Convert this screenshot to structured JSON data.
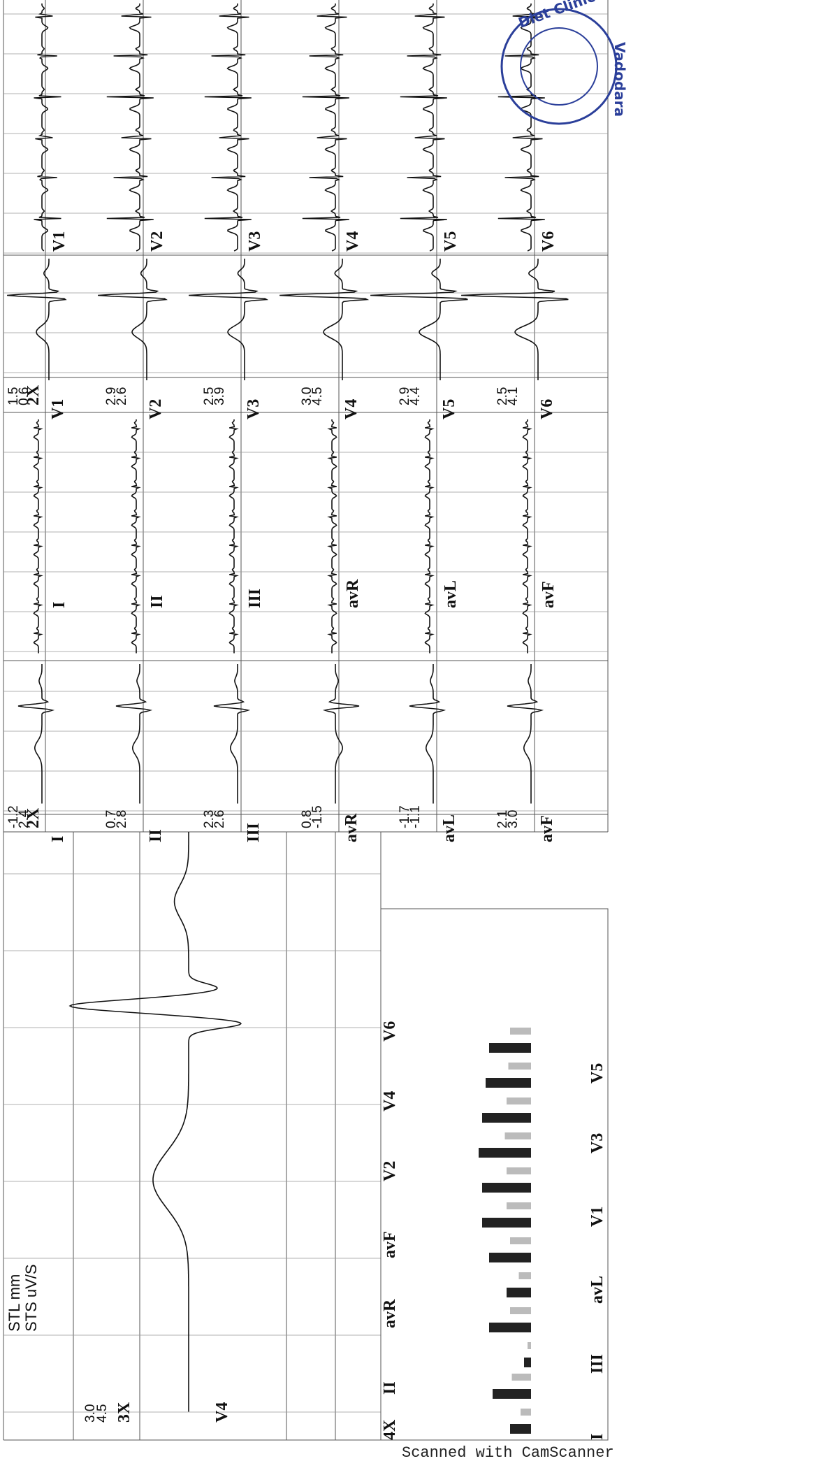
{
  "header": {
    "stl": "STL mm",
    "sts": "STS uV/S"
  },
  "magnified": {
    "stl": "3.0",
    "sts": "4.5",
    "gain": "3X",
    "lead": "V4"
  },
  "st_chart": {
    "gain": "4X",
    "top_labels": [
      "II",
      "avR",
      "avF",
      "V2",
      "V4",
      "V6"
    ],
    "bottom_labels": [
      "I",
      "III",
      "avL",
      "V1",
      "V3",
      "V5"
    ]
  },
  "limb_leads": [
    {
      "stl": "-1.2",
      "sts": "2.4",
      "gain": "2X",
      "lead": "I",
      "strip_label": "I"
    },
    {
      "stl": "0.7",
      "sts": "2.8",
      "lead": "II",
      "strip_label": "II"
    },
    {
      "stl": "2.3",
      "sts": "2.6",
      "lead": "III",
      "strip_label": "III"
    },
    {
      "stl": "0.8",
      "sts": "-1.5",
      "lead": "avR",
      "strip_label": "avR"
    },
    {
      "stl": "-1.7",
      "sts": "-1.1",
      "lead": "avL",
      "strip_label": "avL"
    },
    {
      "stl": "2.1",
      "sts": "3.0",
      "lead": "avF",
      "strip_label": "avF"
    }
  ],
  "chest_leads": [
    {
      "stl": "1.5",
      "sts": "0.6",
      "gain": "2X",
      "lead": "V1",
      "strip_label": "V1"
    },
    {
      "stl": "2.9",
      "sts": "2.6",
      "lead": "V2",
      "strip_label": "V2"
    },
    {
      "stl": "2.5",
      "sts": "3.9",
      "lead": "V3",
      "strip_label": "V3"
    },
    {
      "stl": "3.0",
      "sts": "4.5",
      "lead": "V4",
      "strip_label": "V4"
    },
    {
      "stl": "2.9",
      "sts": "4.4",
      "lead": "V5",
      "strip_label": "V5"
    },
    {
      "stl": "2.5",
      "sts": "4.1",
      "lead": "V6",
      "strip_label": "V6"
    }
  ],
  "stamp": {
    "top": "Diet Clinic",
    "side": "Vadodara"
  },
  "footer": "Scanned with CamScanner"
}
